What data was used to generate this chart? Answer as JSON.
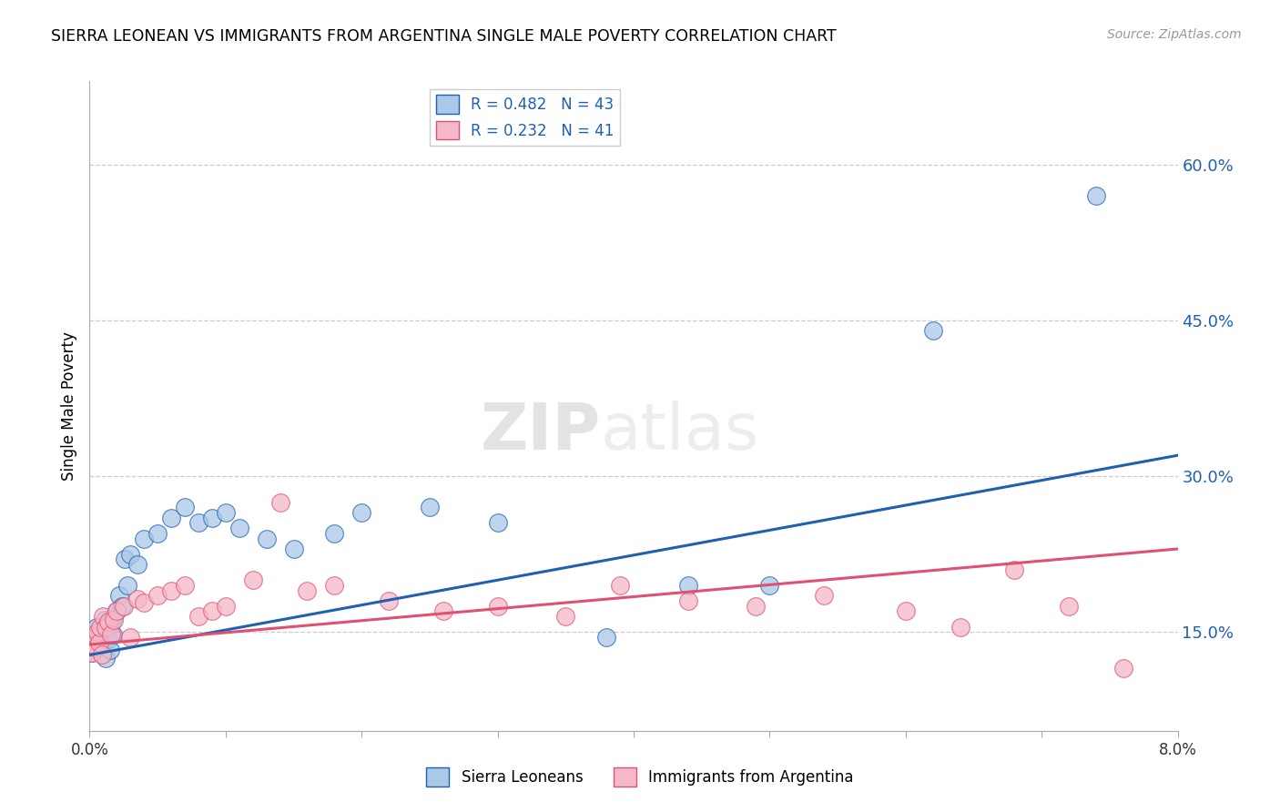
{
  "title": "SIERRA LEONEAN VS IMMIGRANTS FROM ARGENTINA SINGLE MALE POVERTY CORRELATION CHART",
  "source": "Source: ZipAtlas.com",
  "ylabel": "Single Male Poverty",
  "yticks": [
    0.15,
    0.3,
    0.45,
    0.6
  ],
  "ytick_labels": [
    "15.0%",
    "30.0%",
    "45.0%",
    "60.0%"
  ],
  "xmin": 0.0,
  "xmax": 0.08,
  "ymin": 0.055,
  "ymax": 0.68,
  "legend1_label": "R = 0.482   N = 43",
  "legend2_label": "R = 0.232   N = 41",
  "color_blue": "#aac8e8",
  "color_pink": "#f5b8c8",
  "line_color_blue": "#2060b0",
  "line_color_pink": "#e05070",
  "watermark_zip": "ZIP",
  "watermark_atlas": "atlas",
  "sierra_x": [
    0.0002,
    0.0003,
    0.0004,
    0.0005,
    0.0006,
    0.0007,
    0.0008,
    0.0009,
    0.001,
    0.0011,
    0.0012,
    0.0013,
    0.0014,
    0.0015,
    0.0016,
    0.0017,
    0.0018,
    0.002,
    0.0022,
    0.0024,
    0.0026,
    0.0028,
    0.003,
    0.0035,
    0.004,
    0.005,
    0.006,
    0.007,
    0.008,
    0.009,
    0.01,
    0.011,
    0.013,
    0.015,
    0.018,
    0.02,
    0.025,
    0.03,
    0.038,
    0.044,
    0.05,
    0.062,
    0.074
  ],
  "sierra_y": [
    0.13,
    0.145,
    0.135,
    0.155,
    0.14,
    0.148,
    0.138,
    0.152,
    0.142,
    0.162,
    0.125,
    0.15,
    0.143,
    0.133,
    0.158,
    0.148,
    0.165,
    0.17,
    0.185,
    0.175,
    0.22,
    0.195,
    0.225,
    0.215,
    0.24,
    0.245,
    0.26,
    0.27,
    0.255,
    0.26,
    0.265,
    0.25,
    0.24,
    0.23,
    0.245,
    0.265,
    0.27,
    0.255,
    0.145,
    0.195,
    0.195,
    0.44,
    0.57
  ],
  "argentina_x": [
    0.0002,
    0.0003,
    0.0004,
    0.0005,
    0.0006,
    0.0007,
    0.0008,
    0.0009,
    0.001,
    0.0012,
    0.0014,
    0.0016,
    0.0018,
    0.002,
    0.0025,
    0.003,
    0.0035,
    0.004,
    0.005,
    0.006,
    0.007,
    0.008,
    0.009,
    0.01,
    0.012,
    0.014,
    0.016,
    0.018,
    0.022,
    0.026,
    0.03,
    0.035,
    0.039,
    0.044,
    0.049,
    0.054,
    0.06,
    0.064,
    0.068,
    0.072,
    0.076
  ],
  "argentina_y": [
    0.13,
    0.138,
    0.145,
    0.135,
    0.15,
    0.14,
    0.155,
    0.128,
    0.165,
    0.155,
    0.16,
    0.148,
    0.162,
    0.17,
    0.175,
    0.145,
    0.182,
    0.178,
    0.185,
    0.19,
    0.195,
    0.165,
    0.17,
    0.175,
    0.2,
    0.275,
    0.19,
    0.195,
    0.18,
    0.17,
    0.175,
    0.165,
    0.195,
    0.18,
    0.175,
    0.185,
    0.17,
    0.155,
    0.21,
    0.175,
    0.115
  ],
  "trend_blue_y0": 0.128,
  "trend_blue_y1": 0.32,
  "trend_pink_y0": 0.138,
  "trend_pink_y1": 0.23
}
